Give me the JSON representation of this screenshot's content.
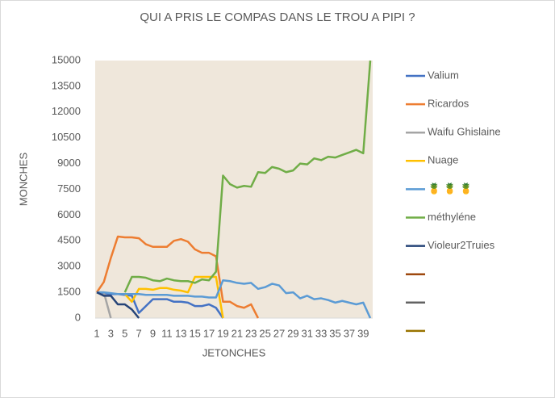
{
  "chart_data": {
    "type": "line",
    "title": "QUI A PRIS LE COMPAS DANS LE TROU A PIPI ?",
    "x_label": "JETONCHES",
    "y_label": "MONCHES",
    "categories": [
      1,
      null,
      3,
      null,
      5,
      null,
      7,
      null,
      9,
      null,
      11,
      null,
      13,
      null,
      15,
      null,
      17,
      null,
      19,
      null,
      21,
      null,
      23,
      null,
      25,
      null,
      27,
      null,
      29,
      null,
      31,
      null,
      33,
      null,
      35,
      null,
      37,
      null,
      39,
      null
    ],
    "ylim": [
      0,
      15000
    ],
    "yticks": [
      0,
      1500,
      3000,
      4500,
      6000,
      7500,
      9000,
      10500,
      12000,
      13500,
      15000
    ],
    "series": [
      {
        "name": "Valium",
        "color": "#4472c4",
        "values": [
          1500,
          1450,
          1400,
          1400,
          1350,
          1300,
          300,
          700,
          1100,
          1100,
          1100,
          950,
          950,
          900,
          700,
          700,
          800,
          600,
          0,
          null,
          null,
          null,
          null,
          null,
          null,
          null,
          null,
          null,
          null,
          null,
          null,
          null,
          null,
          null,
          null,
          null,
          null,
          null,
          null,
          null
        ]
      },
      {
        "name": "Ricardos",
        "color": "#ed7d31",
        "values": [
          1500,
          2100,
          3500,
          4750,
          4700,
          4700,
          4650,
          4300,
          4150,
          4150,
          4150,
          4500,
          4600,
          4450,
          4000,
          3800,
          3800,
          3600,
          950,
          950,
          700,
          600,
          800,
          0,
          null,
          null,
          null,
          null,
          null,
          null,
          null,
          null,
          null,
          null,
          null,
          null,
          null,
          null,
          null,
          null
        ]
      },
      {
        "name": "Waifu Ghislaine",
        "color": "#a5a5a5",
        "values": [
          1500,
          1500,
          0,
          null,
          null,
          null,
          null,
          null,
          null,
          null,
          null,
          null,
          null,
          null,
          null,
          null,
          null,
          null,
          null,
          null,
          null,
          null,
          null,
          null,
          null,
          null,
          null,
          null,
          null,
          null,
          null,
          null,
          null,
          null,
          null,
          null,
          null,
          null,
          null,
          null
        ]
      },
      {
        "name": "Nuage",
        "color": "#ffc000",
        "values": [
          null,
          null,
          null,
          null,
          1400,
          950,
          1700,
          1700,
          1650,
          1750,
          1750,
          1650,
          1600,
          1500,
          2400,
          2400,
          2400,
          2400,
          0,
          null,
          null,
          null,
          null,
          null,
          null,
          null,
          null,
          null,
          null,
          null,
          null,
          null,
          null,
          null,
          null,
          null,
          null,
          null,
          null,
          null
        ]
      },
      {
        "name": "🍍 🍍 🍍",
        "color": "#5b9bd5",
        "values": [
          1500,
          1500,
          1450,
          1400,
          1400,
          1400,
          1400,
          1350,
          1350,
          1350,
          1350,
          1300,
          1300,
          1300,
          1250,
          1250,
          1200,
          1200,
          2200,
          2150,
          2050,
          2000,
          2050,
          1700,
          1800,
          2000,
          1900,
          1450,
          1500,
          1150,
          1300,
          1100,
          1150,
          1050,
          900,
          1000,
          900,
          800,
          900,
          0
        ]
      },
      {
        "name": "méthyléne",
        "color": "#70ad47",
        "values": [
          null,
          null,
          null,
          null,
          1500,
          2400,
          2400,
          2350,
          2200,
          2150,
          2300,
          2200,
          2150,
          2150,
          2050,
          2250,
          2200,
          2700,
          8300,
          7800,
          7600,
          7700,
          7650,
          8500,
          8450,
          8800,
          8700,
          8500,
          8600,
          9000,
          8950,
          9300,
          9200,
          9400,
          9350,
          9500,
          9650,
          9800,
          9600,
          15000
        ]
      },
      {
        "name": "Violeur2Truies",
        "color": "#264478",
        "values": [
          1500,
          1300,
          1300,
          800,
          800,
          500,
          0,
          null,
          null,
          null,
          null,
          null,
          null,
          null,
          null,
          null,
          null,
          null,
          null,
          null,
          null,
          null,
          null,
          null,
          null,
          null,
          null,
          null,
          null,
          null,
          null,
          null,
          null,
          null,
          null,
          null,
          null,
          null,
          null,
          null
        ]
      },
      {
        "name": null,
        "color": "#9e480e",
        "values": [
          null,
          null,
          null,
          null,
          null,
          null,
          null,
          null,
          null,
          null,
          null,
          null,
          null,
          null,
          null,
          null,
          null,
          null,
          null,
          null,
          null,
          null,
          null,
          null,
          null,
          null,
          null,
          null,
          null,
          null,
          null,
          null,
          null,
          null,
          null,
          null,
          null,
          null,
          null,
          null
        ]
      },
      {
        "name": null,
        "color": "#636363",
        "values": [
          null,
          null,
          null,
          null,
          null,
          null,
          null,
          null,
          null,
          null,
          null,
          null,
          null,
          null,
          null,
          null,
          null,
          null,
          null,
          null,
          null,
          null,
          null,
          null,
          null,
          null,
          null,
          null,
          null,
          null,
          null,
          null,
          null,
          null,
          null,
          null,
          null,
          null,
          null,
          null
        ]
      },
      {
        "name": null,
        "color": "#997300",
        "values": [
          null,
          null,
          null,
          null,
          null,
          null,
          null,
          null,
          null,
          null,
          null,
          null,
          null,
          null,
          null,
          null,
          null,
          null,
          null,
          null,
          null,
          null,
          null,
          null,
          null,
          null,
          null,
          null,
          null,
          null,
          null,
          null,
          null,
          null,
          null,
          null,
          null,
          null,
          null,
          null
        ]
      }
    ]
  }
}
